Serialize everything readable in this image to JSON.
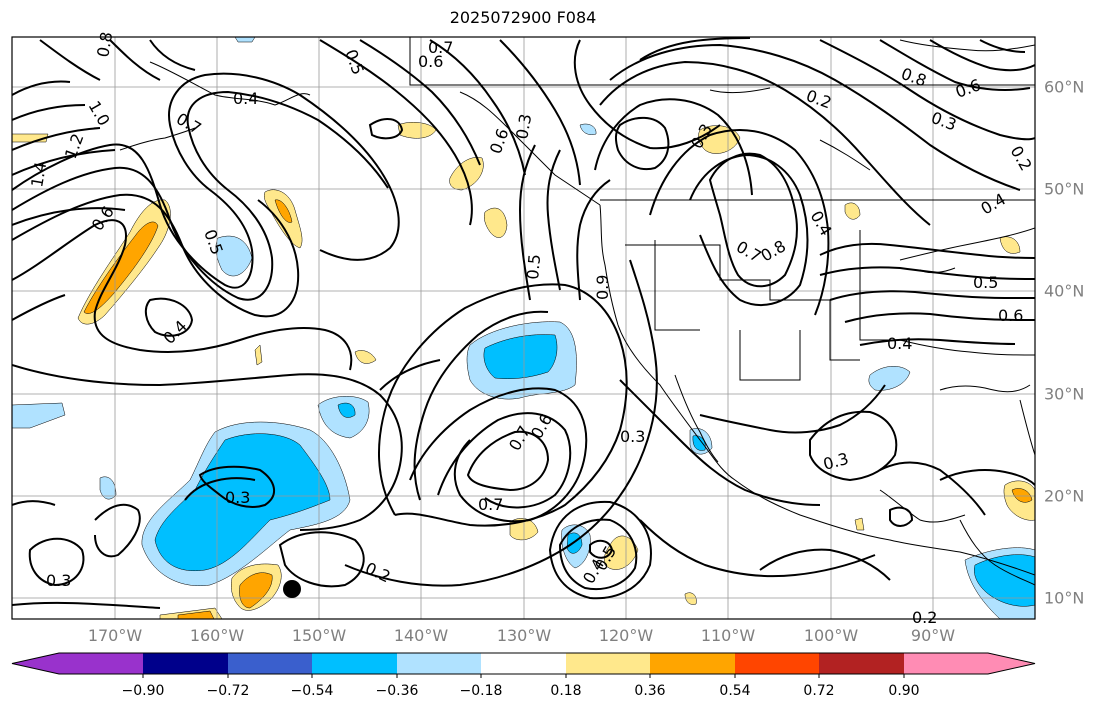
{
  "title": "2025072900 F084",
  "lon_labels": [
    "170°W",
    "160°W",
    "150°W",
    "140°W",
    "130°W",
    "120°W",
    "110°W",
    "100°W",
    "90°W"
  ],
  "lat_labels": [
    "60°N",
    "50°N",
    "40°N",
    "30°N",
    "20°N",
    "10°N"
  ],
  "contour_labels": [
    "0.8",
    "0.5",
    "0.7",
    "0.6",
    "0.4",
    "0.7",
    "1.0",
    "1.2",
    "1.4",
    "0.6",
    "0.5",
    "0.4",
    "0.3",
    "0.6",
    "0.5",
    "0.9",
    "0.3",
    "0.7",
    "0.6",
    "0.3",
    "0.7",
    "0.2",
    "0.3",
    "0.4",
    "0.5",
    "0.2",
    "0.8",
    "0.6",
    "0.3",
    "0.2",
    "0.7",
    "0.8",
    "0.4",
    "0.5",
    "0.6",
    "0.4",
    "0.3",
    "0.3",
    "0.2",
    "0.4"
  ],
  "colorbar": {
    "tick_labels": [
      "−0.90",
      "−0.72",
      "−0.54",
      "−0.36",
      "−0.18",
      "0.18",
      "0.36",
      "0.54",
      "0.72",
      "0.90"
    ],
    "colors": [
      "#9932cc",
      "#00008b",
      "#3a5fcd",
      "#00bfff",
      "#b0e2ff",
      "#ffffff",
      "#ffe88c",
      "#ffa500",
      "#ff4500",
      "#b22222",
      "#ff8cb4"
    ]
  },
  "hurricane_marker": "filled-circle"
}
